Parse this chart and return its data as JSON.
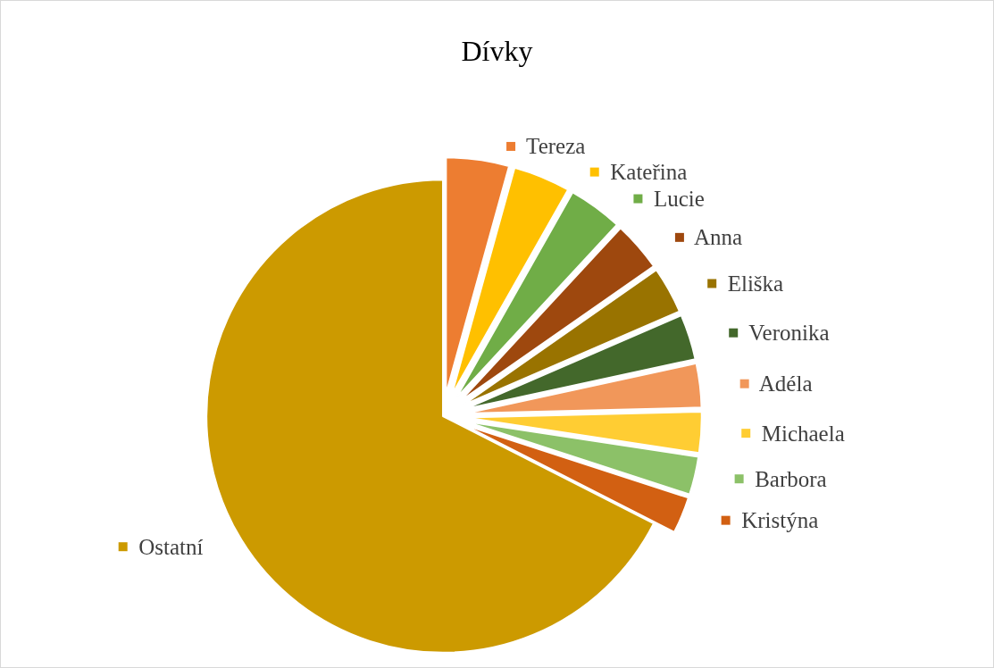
{
  "chart_data": {
    "type": "pie",
    "title": "Dívky",
    "categories": [
      "Tereza",
      "Kateřina",
      "Lucie",
      "Anna",
      "Eliška",
      "Veronika",
      "Adéla",
      "Michaela",
      "Barbora",
      "Kristýna",
      "Ostatní"
    ],
    "values": [
      4.3,
      3.9,
      3.7,
      3.4,
      3.2,
      3.1,
      3.0,
      2.8,
      2.6,
      2.5,
      67.5
    ],
    "colors": [
      "#ed7d31",
      "#ffc000",
      "#70ad47",
      "#9e480e",
      "#997300",
      "#43682b",
      "#f1975a",
      "#ffcd33",
      "#8cc168",
      "#d26012",
      "#cc9a00"
    ],
    "legend": "right"
  }
}
